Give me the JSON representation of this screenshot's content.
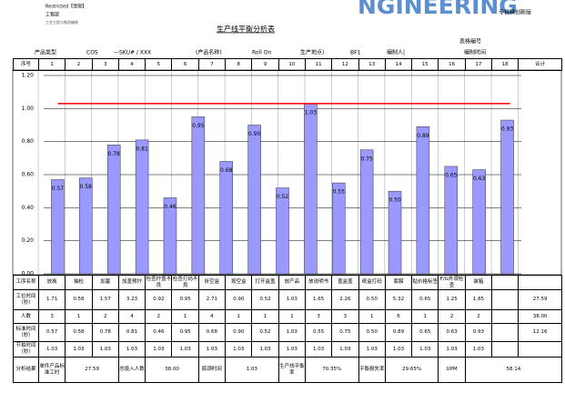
{
  "header": {
    "restricted": "Restricted【受限】",
    "dept": "工程部",
    "sub": "工艺工程与制造编制",
    "brand": "NGINEERING",
    "brand_note": "专锐精创新版",
    "title": "生产线平衡分析表",
    "form_no": "表格编号"
  },
  "info": [
    "产品类型",
    "COS",
    "—SKU# / XXX",
    "(产品名称)",
    "Roll On",
    "生产地点)",
    "BF1",
    "编制人|",
    "编制时间"
  ],
  "chart_data": {
    "type": "bar",
    "values": [
      0.57,
      0.58,
      0.78,
      0.81,
      0.46,
      0.95,
      0.68,
      0.9,
      0.52,
      1.03,
      0.55,
      0.75,
      0.5,
      0.89,
      0.65,
      0.63,
      0.93
    ],
    "value_labels": [
      "0.57",
      "0.58",
      "0.78",
      "0.81",
      "0.46",
      "0.95",
      "0.68",
      "0.90",
      "0.52",
      "1.03",
      "0.55",
      "0.75",
      "0.50",
      "0.89",
      "0.65",
      "0.63",
      "0.93"
    ],
    "color": "#9999ff",
    "takt": 1.03,
    "takt_color": "#ff0000",
    "ylim": [
      0,
      1.2
    ],
    "yticks": [
      {
        "value": 0,
        "label": "0.00"
      },
      {
        "value": 0.2,
        "label": "0.20"
      },
      {
        "value": 0.4,
        "label": "0.40"
      },
      {
        "value": 0.6,
        "label": "0.60"
      },
      {
        "value": 0.8,
        "label": "0.80"
      },
      {
        "value": 1,
        "label": "1.00"
      },
      {
        "value": 1.2,
        "label": "1.20"
      }
    ],
    "grid": true
  },
  "table": {
    "index_label": "序号",
    "indices": [
      1,
      2,
      3,
      4,
      5,
      6,
      7,
      8,
      9,
      10,
      11,
      12,
      13,
      14,
      15,
      16,
      17,
      18
    ],
    "total_label": "合计",
    "rows": [
      {
        "label": "工序名称",
        "cells": [
          "放胤",
          "抽检",
          "加塞",
          "加盖预拧",
          "检查拧盖不良",
          "检查打码不良",
          "折空盒",
          "按空盒",
          "打开盒盖",
          "放产品",
          "放说明书",
          "盖盒盖",
          "纸盒打码",
          "套膜",
          "贴价格标签",
          "F/G外观检查",
          "装箱"
        ]
      },
      {
        "label": "工位时间（秒）",
        "cells": [
          "1.71",
          "0.58",
          "1.57",
          "3.23",
          "0.92",
          "0.95",
          "2.71",
          "0.90",
          "0.52",
          "1.03",
          "1.65",
          "2.26",
          "0.50",
          "5.32",
          "0.65",
          "1.25",
          "1.85"
        ],
        "total": "27.59"
      },
      {
        "label": "人数",
        "cells": [
          "3",
          "1",
          "2",
          "4",
          "2",
          "1",
          "4",
          "1",
          "1",
          "1",
          "3",
          "3",
          "1",
          "6",
          "1",
          "2",
          "2"
        ],
        "total": "38.00"
      },
      {
        "label": "标准时间（秒）",
        "cells": [
          "0.57",
          "0.58",
          "0.78",
          "0.81",
          "0.46",
          "0.95",
          "0.68",
          "0.90",
          "0.52",
          "1.03",
          "0.55",
          "0.75",
          "0.50",
          "0.89",
          "0.65",
          "0.63",
          "0.93"
        ],
        "total": "12.16"
      },
      {
        "label": "节拍时间（秒）",
        "cells": [
          "1.03",
          "1.03",
          "1.03",
          "1.03",
          "1.03",
          "1.03",
          "1.03",
          "1.03",
          "1.03",
          "1.03",
          "1.03",
          "1.03",
          "1.03",
          "1.03",
          "1.03",
          "1.03",
          "1.03"
        ]
      }
    ],
    "analysis": {
      "label": "分析结果",
      "items": [
        [
          "单件产品标准工时",
          "27.59"
        ],
        [
          "总投入人数",
          "38.00"
        ],
        [
          "瓶颈时间",
          "1.03"
        ],
        [
          "生产线平衡率",
          "70.35%"
        ],
        [
          "平衡损失率",
          "29.65%"
        ],
        [
          "UPM",
          "58.14"
        ]
      ]
    }
  }
}
